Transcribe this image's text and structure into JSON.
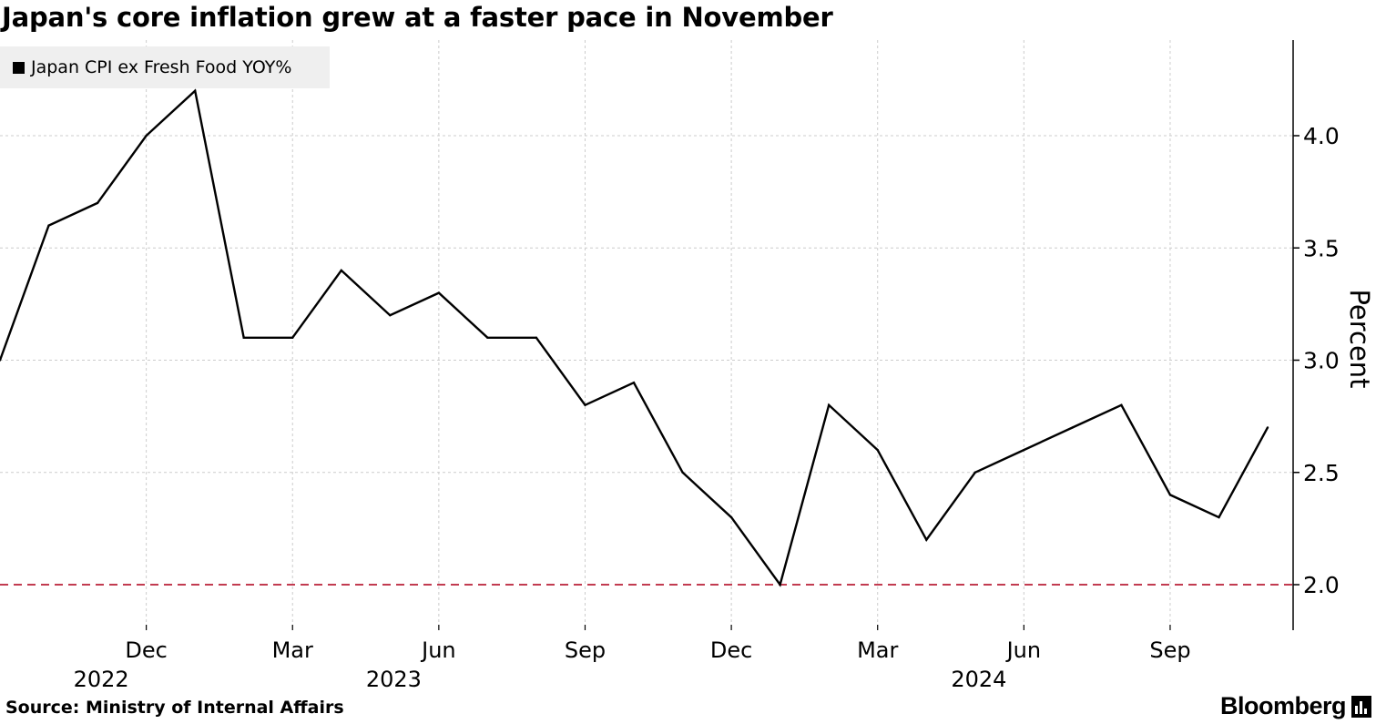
{
  "title": "Japan's core inflation grew at a faster pace in November",
  "source": "Source:  Ministry of Internal Affairs",
  "brand": "Bloomberg",
  "colors": {
    "line": "#000000",
    "reference": "#c23b50",
    "grid": "#cccccc",
    "legend_bg": "#efefef"
  },
  "chart_data": {
    "type": "line",
    "title": "Japan's core inflation grew at a faster pace in November",
    "ylabel": "Percent",
    "ylim": [
      1.8,
      4.4
    ],
    "yticks": [
      "2.0",
      "2.5",
      "3.0",
      "3.5",
      "4.0"
    ],
    "y_axis_side": "right",
    "grid": true,
    "legend": {
      "placement": "top-left",
      "entries": [
        "Japan CPI ex Fresh Food YOY%"
      ]
    },
    "x_ticks": [
      {
        "month": "2022-12",
        "label": "Dec",
        "year": "2022"
      },
      {
        "month": "2023-03",
        "label": "Mar",
        "year": ""
      },
      {
        "month": "2023-06",
        "label": "Jun",
        "year": "2023"
      },
      {
        "month": "2023-09",
        "label": "Sep",
        "year": ""
      },
      {
        "month": "2023-12",
        "label": "Dec",
        "year": ""
      },
      {
        "month": "2024-03",
        "label": "Mar",
        "year": ""
      },
      {
        "month": "2024-06",
        "label": "Jun",
        "year": "2024"
      },
      {
        "month": "2024-09",
        "label": "Sep",
        "year": ""
      }
    ],
    "reference_line": {
      "y": 2.0,
      "style": "dashed",
      "color": "#c23b50"
    },
    "series": [
      {
        "name": "Japan CPI ex Fresh Food YOY%",
        "x": [
          "2022-09",
          "2022-10",
          "2022-11",
          "2022-12",
          "2023-01",
          "2023-02",
          "2023-03",
          "2023-04",
          "2023-05",
          "2023-06",
          "2023-07",
          "2023-08",
          "2023-09",
          "2023-10",
          "2023-11",
          "2023-12",
          "2024-01",
          "2024-02",
          "2024-03",
          "2024-04",
          "2024-05",
          "2024-06",
          "2024-07",
          "2024-08",
          "2024-09",
          "2024-10",
          "2024-11"
        ],
        "values": [
          3.0,
          3.6,
          3.7,
          4.0,
          4.2,
          3.1,
          3.1,
          3.4,
          3.2,
          3.3,
          3.1,
          3.1,
          2.8,
          2.9,
          2.5,
          2.3,
          2.0,
          2.8,
          2.6,
          2.2,
          2.5,
          2.6,
          2.7,
          2.8,
          2.4,
          2.3,
          2.7
        ]
      }
    ]
  }
}
